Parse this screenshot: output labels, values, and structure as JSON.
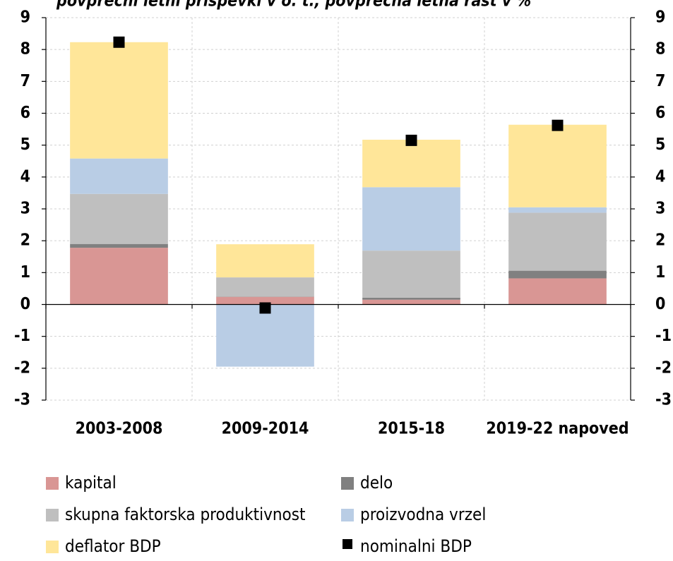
{
  "chart_data": {
    "type": "bar",
    "stacked": true,
    "title": "povprečni letni prispevki v o. t., povprečna letna rast v %",
    "categories": [
      "2003-2008",
      "2009-2014",
      "2015-18",
      "2019-22 napoved"
    ],
    "series": [
      {
        "name": "kapital",
        "color": "#d99694",
        "type": "bar",
        "values": [
          1.78,
          0.24,
          0.15,
          0.82
        ]
      },
      {
        "name": "delo",
        "color": "#808080",
        "type": "bar",
        "values": [
          0.12,
          0.01,
          0.06,
          0.24
        ]
      },
      {
        "name": "skupna faktorska produktivnost",
        "color": "#bfbfbf",
        "type": "bar",
        "values": [
          1.57,
          0.6,
          1.48,
          1.82
        ]
      },
      {
        "name": "proizvodna vrzel",
        "color": "#b9cde5",
        "type": "bar",
        "values": [
          1.11,
          -1.95,
          1.99,
          0.17
        ]
      },
      {
        "name": "deflator BDP",
        "color": "#ffe699",
        "type": "bar",
        "values": [
          3.65,
          1.04,
          1.49,
          2.59
        ]
      },
      {
        "name": "nominalni BDP",
        "color": "#000000",
        "type": "marker",
        "values": [
          8.23,
          -0.11,
          5.15,
          5.62
        ]
      }
    ],
    "ylim": [
      -3,
      9
    ],
    "yticks": [
      -3,
      -2,
      -1,
      0,
      1,
      2,
      3,
      4,
      5,
      6,
      7,
      8,
      9
    ],
    "y2lim": [
      -3,
      9
    ],
    "y2ticks": [
      -3,
      -2,
      -1,
      0,
      1,
      2,
      3,
      4,
      5,
      6,
      7,
      8,
      9
    ],
    "grid": true,
    "legend": "bottom"
  }
}
